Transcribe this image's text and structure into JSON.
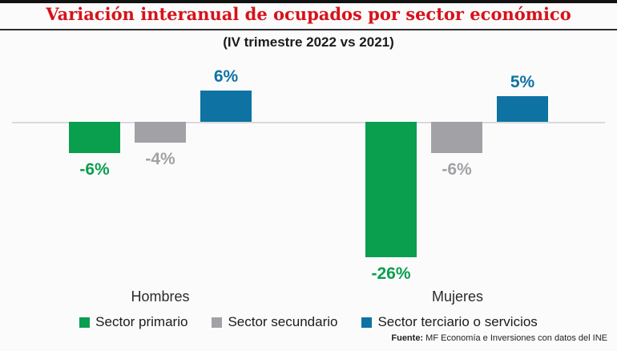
{
  "header": {
    "title": "Variación interanual de ocupados por sector económico",
    "subtitle": "(IV trimestre 2022 vs 2021)"
  },
  "colors": {
    "title_red": "#d7121a",
    "primario_green": "#0a9e4f",
    "secundario_gray": "#a2a1a6",
    "terciario_blue": "#0e73a3",
    "zero_line_gray": "#dadada"
  },
  "chart_data": {
    "type": "bar",
    "categories": [
      "Hombres",
      "Mujeres"
    ],
    "series": [
      {
        "name": "Sector primario",
        "color": "#0a9e4f",
        "values": [
          -6,
          -26
        ]
      },
      {
        "name": "Sector secundario",
        "color": "#a2a1a6",
        "values": [
          -4,
          -6
        ]
      },
      {
        "name": "Sector terciario o servicios",
        "color": "#0e73a3",
        "values": [
          6,
          5
        ]
      }
    ],
    "value_label_suffix": "%",
    "title": "Variación interanual de ocupados por sector económico",
    "subtitle": "(IV trimestre 2022 vs 2021)",
    "ylim": [
      -30,
      10
    ],
    "baseline": 0,
    "grid": false,
    "legend_position": "bottom",
    "value_labels": "on",
    "value_label_color": "match-series"
  },
  "footer": {
    "source_label": "Fuente:",
    "source_text": " MF Economía e Inversiones con datos del INE"
  }
}
